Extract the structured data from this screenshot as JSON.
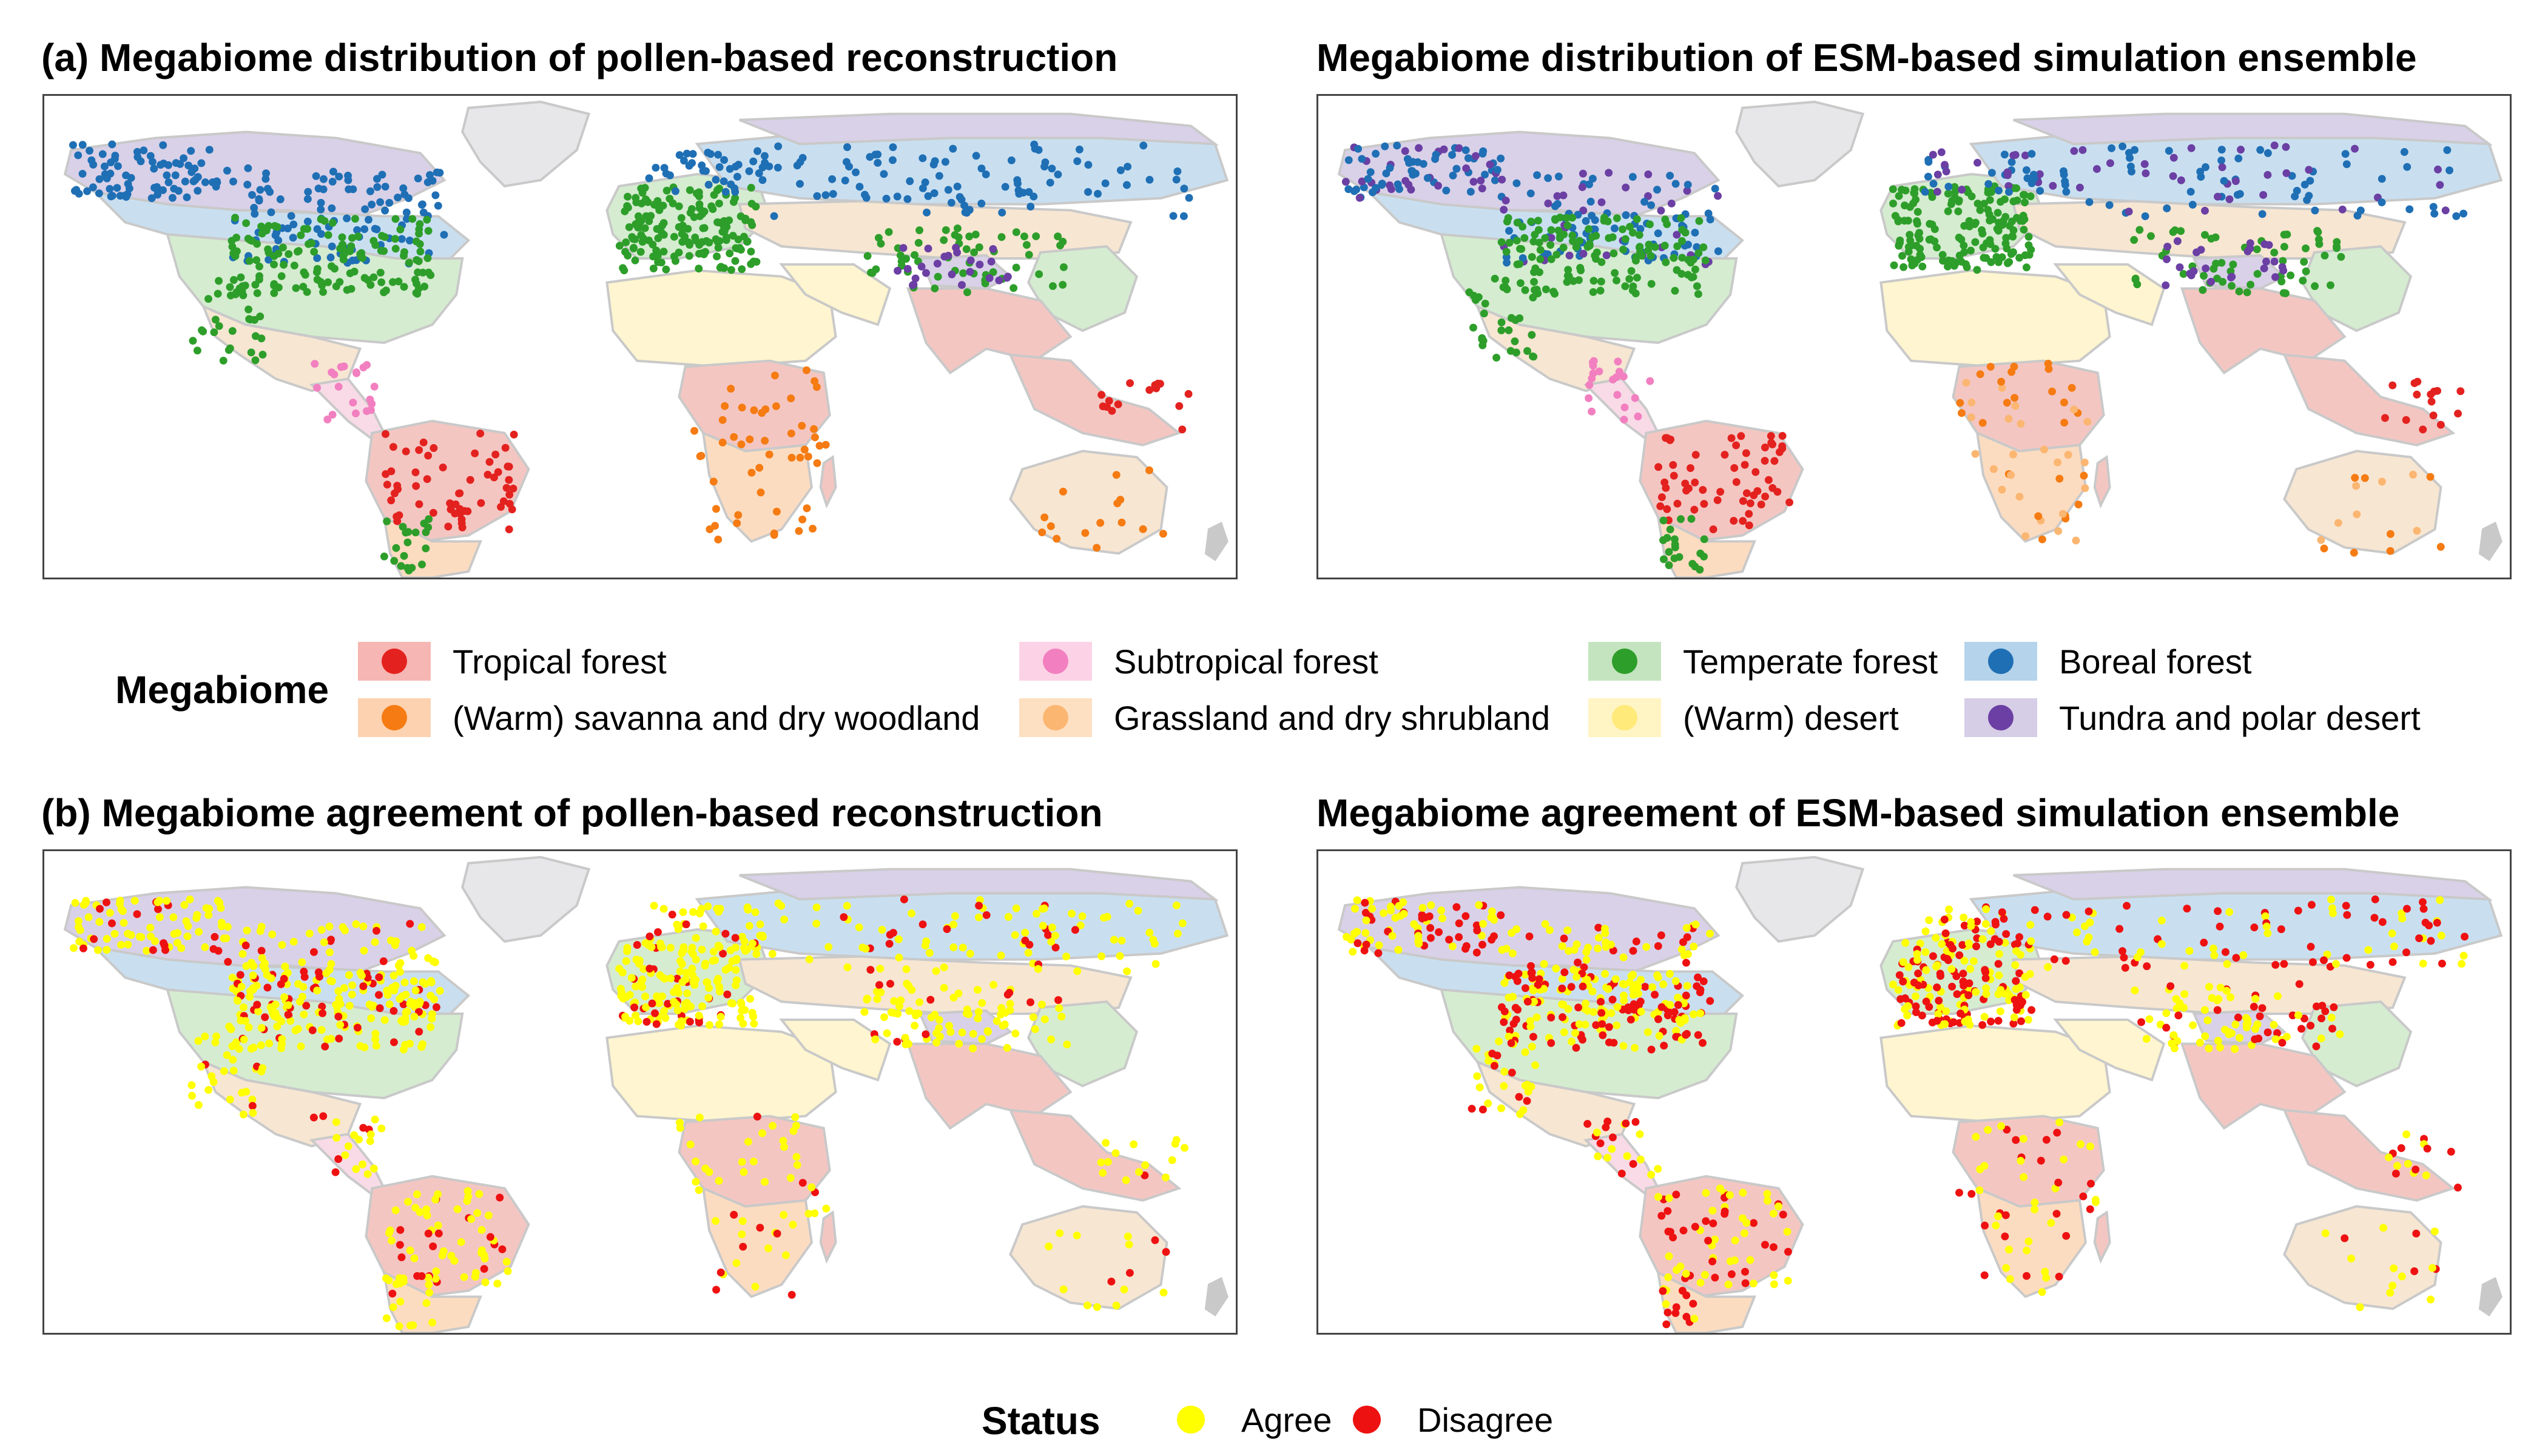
{
  "panels": {
    "a_left_title": "(a) Megabiome distribution of pollen-based reconstruction",
    "a_right_title": "Megabiome distribution of ESM-based simulation ensemble",
    "b_left_title": "(b) Megabiome agreement of pollen-based reconstruction",
    "b_right_title": "Megabiome agreement of ESM-based simulation ensemble"
  },
  "megabiome_legend": {
    "title": "Megabiome",
    "items": [
      {
        "label": "Tropical forest",
        "fill": "#f6b6b3",
        "dot": "#e3221f"
      },
      {
        "label": "Subtropical forest",
        "fill": "#fcd3e6",
        "dot": "#f27fc0"
      },
      {
        "label": "Temperate forest",
        "fill": "#c4e4bf",
        "dot": "#2e9e2a"
      },
      {
        "label": "Boreal forest",
        "fill": "#b5d3ea",
        "dot": "#1f6fb5"
      },
      {
        "label": "(Warm) savanna and dry woodland",
        "fill": "#fdd2b0",
        "dot": "#f57b12"
      },
      {
        "label": "Grassland and dry shrubland",
        "fill": "#fde0c2",
        "dot": "#fbb672"
      },
      {
        "label": "(Warm) desert",
        "fill": "#fff4c4",
        "dot": "#ffea7a"
      },
      {
        "label": "Tundra and polar desert",
        "fill": "#d6cde6",
        "dot": "#6b3fa3"
      }
    ]
  },
  "status_legend": {
    "title": "Status",
    "items": [
      {
        "label": "Agree",
        "color": "#ffff00"
      },
      {
        "label": "Disagree",
        "color": "#ee1111"
      }
    ]
  },
  "colors": {
    "land": "#f7e6d2",
    "tundra": "#d9d1e8",
    "boreal": "#c9dff0",
    "temperate": "#d5ecd0",
    "tropical": "#f4c6c2",
    "savanna": "#fcdcc0",
    "desert": "#fff5d0",
    "subtropical": "#f8dbe6",
    "greenland": "#e7e7ea",
    "coast": "#c9c9c9"
  }
}
